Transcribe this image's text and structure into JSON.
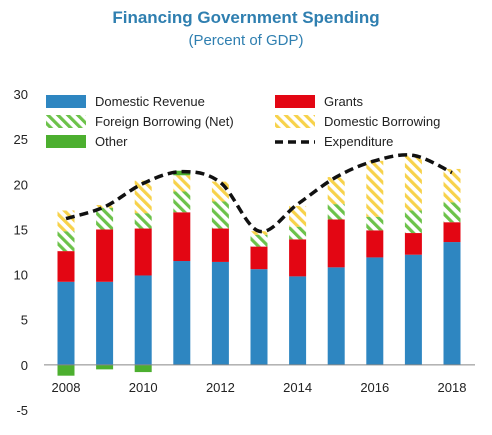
{
  "chart_data": {
    "type": "bar",
    "title": "Financing Government Spending",
    "subtitle": "(Percent of GDP)",
    "xlabel": "",
    "ylabel": "",
    "ylim": [
      -5,
      30
    ],
    "yticks": [
      30,
      25,
      20,
      15,
      10,
      5,
      0,
      -5
    ],
    "categories": [
      "2008",
      "2009",
      "2010",
      "2011",
      "2012",
      "2013",
      "2014",
      "2015",
      "2016",
      "2017",
      "2018"
    ],
    "xtick_labels": [
      "2008",
      "2010",
      "2012",
      "2014",
      "2016",
      "2018"
    ],
    "grid": false,
    "legend_position": "top",
    "stacked": true,
    "series": [
      {
        "name": "Domestic Revenue",
        "pattern": "solid",
        "color": "#2e86c1",
        "values": [
          9.2,
          9.2,
          9.9,
          11.5,
          11.4,
          10.6,
          9.8,
          10.8,
          11.9,
          12.2,
          13.6
        ]
      },
      {
        "name": "Grants",
        "pattern": "solid",
        "color": "#e30613",
        "values": [
          3.4,
          5.8,
          5.2,
          5.4,
          3.7,
          2.5,
          4.1,
          5.3,
          3.0,
          2.4,
          2.2
        ]
      },
      {
        "name": "Foreign Borrowing (Net)",
        "pattern": "hatch",
        "color": "#6cc24a",
        "values": [
          2.2,
          2.4,
          1.7,
          2.3,
          3.0,
          1.3,
          1.4,
          1.7,
          1.5,
          2.5,
          2.2
        ]
      },
      {
        "name": "Domestic Borrowing",
        "pattern": "hatch",
        "color": "#f7d24b",
        "values": [
          2.3,
          0.3,
          3.6,
          1.8,
          2.2,
          0.4,
          2.3,
          3.0,
          6.2,
          6.2,
          3.7
        ]
      },
      {
        "name": "Other",
        "pattern": "solid",
        "color": "#4caf2f",
        "values": [
          -1.2,
          -0.5,
          -0.8,
          0.5,
          0,
          0,
          0,
          0,
          0,
          0,
          0
        ]
      },
      {
        "name": "Expenditure",
        "type": "line",
        "style": "dashed",
        "color": "#111111",
        "values": [
          16.2,
          17.5,
          20.1,
          21.4,
          20.2,
          14.8,
          17.8,
          20.8,
          22.6,
          23.2,
          21.3
        ]
      }
    ]
  }
}
